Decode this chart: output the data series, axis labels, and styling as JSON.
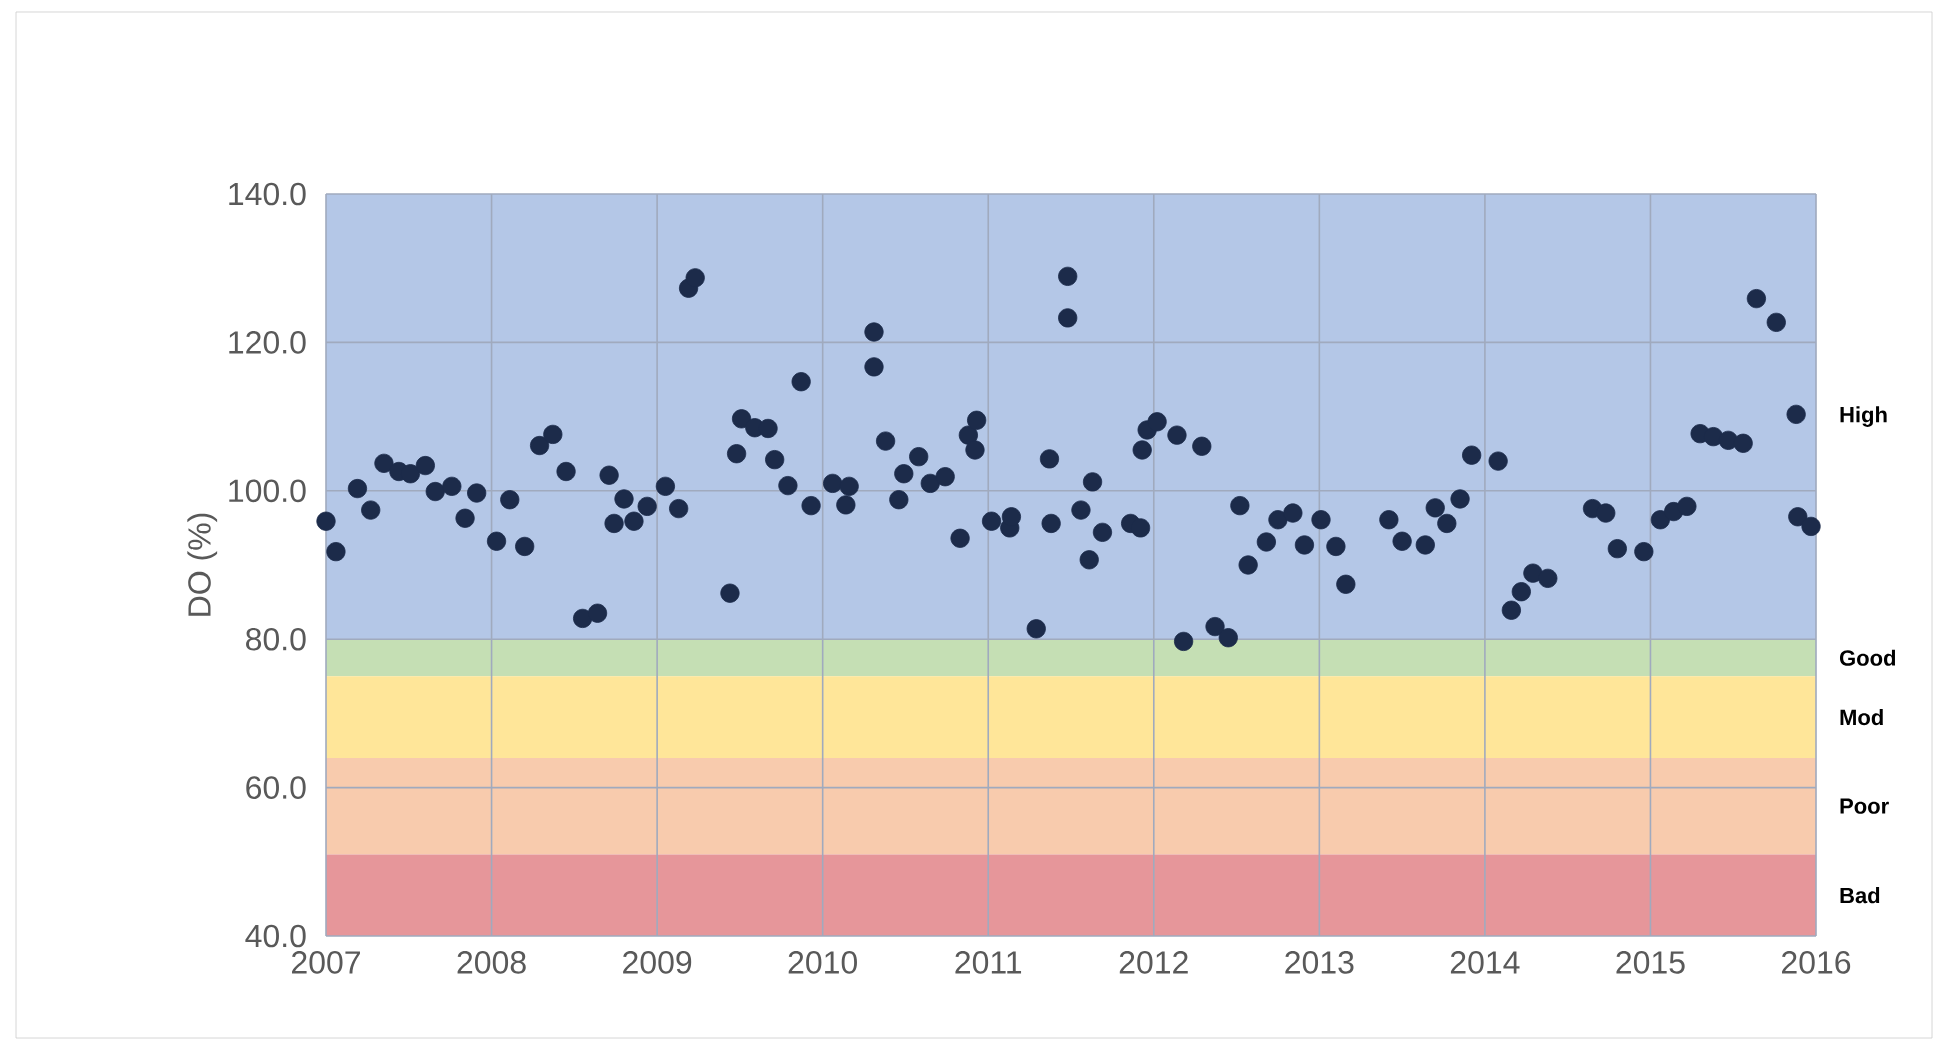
{
  "chart_data": {
    "type": "scatter",
    "ylabel": "DO (%)",
    "xlim": [
      2007,
      2016
    ],
    "ylim": [
      40,
      140
    ],
    "xticks": [
      2007,
      2008,
      2009,
      2010,
      2011,
      2012,
      2013,
      2014,
      2015,
      2016
    ],
    "yticks": [
      {
        "value": 40,
        "label": "40.0"
      },
      {
        "value": 60,
        "label": "60.0"
      },
      {
        "value": 80,
        "label": "80.0"
      },
      {
        "value": 100,
        "label": "100.0"
      },
      {
        "value": 120,
        "label": "120.0"
      },
      {
        "value": 140,
        "label": "140.0"
      }
    ],
    "grid": true,
    "marker": "circle",
    "bands": [
      {
        "axis": "y",
        "from": 80,
        "to": 140,
        "label": "High",
        "color": "#b4c7e7"
      },
      {
        "axis": "y",
        "from": 75,
        "to": 80,
        "label": "Good",
        "color": "#c5dfb4"
      },
      {
        "axis": "y",
        "from": 64,
        "to": 75,
        "label": "Mod",
        "color": "#ffe699"
      },
      {
        "axis": "y",
        "from": 51,
        "to": 64,
        "label": "Poor",
        "color": "#f8cbad"
      },
      {
        "axis": "y",
        "from": 40,
        "to": 51,
        "label": "Bad",
        "color": "#e6969a"
      }
    ],
    "series": [
      {
        "color": "#1c2b4a",
        "x": [
          2007.0,
          2007.06,
          2007.19,
          2007.27,
          2007.35,
          2007.44,
          2007.51,
          2007.6,
          2007.66,
          2007.76,
          2007.84,
          2007.91,
          2008.03,
          2008.11,
          2008.2,
          2008.29,
          2008.37,
          2008.45,
          2008.55,
          2008.64,
          2008.71,
          2008.8,
          2008.74,
          2008.86,
          2008.94,
          2009.05,
          2009.13,
          2009.19,
          2009.23,
          2009.44,
          2009.48,
          2009.51,
          2009.59,
          2009.67,
          2009.71,
          2009.79,
          2009.87,
          2009.93,
          2010.06,
          2010.14,
          2010.16,
          2010.31,
          2010.31,
          2010.38,
          2010.46,
          2010.49,
          2010.58,
          2010.65,
          2010.74,
          2010.83,
          2010.88,
          2010.93,
          2010.92,
          2011.02,
          2011.13,
          2011.14,
          2011.29,
          2011.37,
          2011.38,
          2011.48,
          2011.48,
          2011.56,
          2011.63,
          2011.61,
          2011.69,
          2011.86,
          2011.92,
          2011.93,
          2011.96,
          2012.02,
          2012.14,
          2012.18,
          2012.29,
          2012.37,
          2012.45,
          2012.52,
          2012.57,
          2012.68,
          2012.75,
          2012.84,
          2012.91,
          2013.01,
          2013.1,
          2013.16,
          2013.42,
          2013.5,
          2013.64,
          2013.7,
          2013.77,
          2013.85,
          2013.92,
          2014.08,
          2014.16,
          2014.22,
          2014.29,
          2014.38,
          2014.65,
          2014.73,
          2014.8,
          2014.96,
          2015.06,
          2015.14,
          2015.22,
          2015.3,
          2015.38,
          2015.47,
          2015.56,
          2015.64,
          2015.76,
          2015.88,
          2015.89,
          2015.97
        ],
        "values": [
          95.9,
          91.8,
          100.3,
          97.4,
          103.7,
          102.6,
          102.3,
          103.4,
          99.9,
          100.6,
          96.3,
          99.7,
          93.2,
          98.8,
          92.5,
          106.1,
          107.6,
          102.6,
          82.8,
          83.5,
          102.1,
          98.9,
          95.6,
          95.9,
          97.9,
          100.6,
          97.6,
          127.3,
          128.7,
          86.2,
          105.0,
          109.7,
          108.5,
          108.4,
          104.2,
          100.7,
          114.7,
          98.0,
          101.0,
          98.1,
          100.6,
          121.4,
          116.7,
          106.7,
          98.8,
          102.3,
          104.6,
          101.0,
          101.9,
          93.6,
          107.5,
          109.5,
          105.5,
          95.9,
          95.0,
          96.5,
          81.4,
          104.3,
          95.6,
          128.9,
          123.3,
          97.4,
          101.2,
          90.7,
          94.4,
          95.6,
          95.0,
          105.5,
          108.2,
          109.3,
          107.5,
          79.7,
          106.0,
          81.7,
          80.2,
          98.0,
          90.0,
          93.1,
          96.1,
          97.0,
          92.7,
          96.1,
          92.5,
          87.4,
          96.1,
          93.2,
          92.7,
          97.7,
          95.6,
          98.9,
          104.8,
          104.0,
          83.9,
          86.4,
          88.9,
          88.2,
          97.6,
          97.0,
          92.2,
          91.8,
          96.1,
          97.2,
          97.9,
          107.7,
          107.3,
          106.8,
          106.4,
          125.9,
          122.7,
          110.3,
          96.5,
          95.2
        ]
      }
    ]
  }
}
